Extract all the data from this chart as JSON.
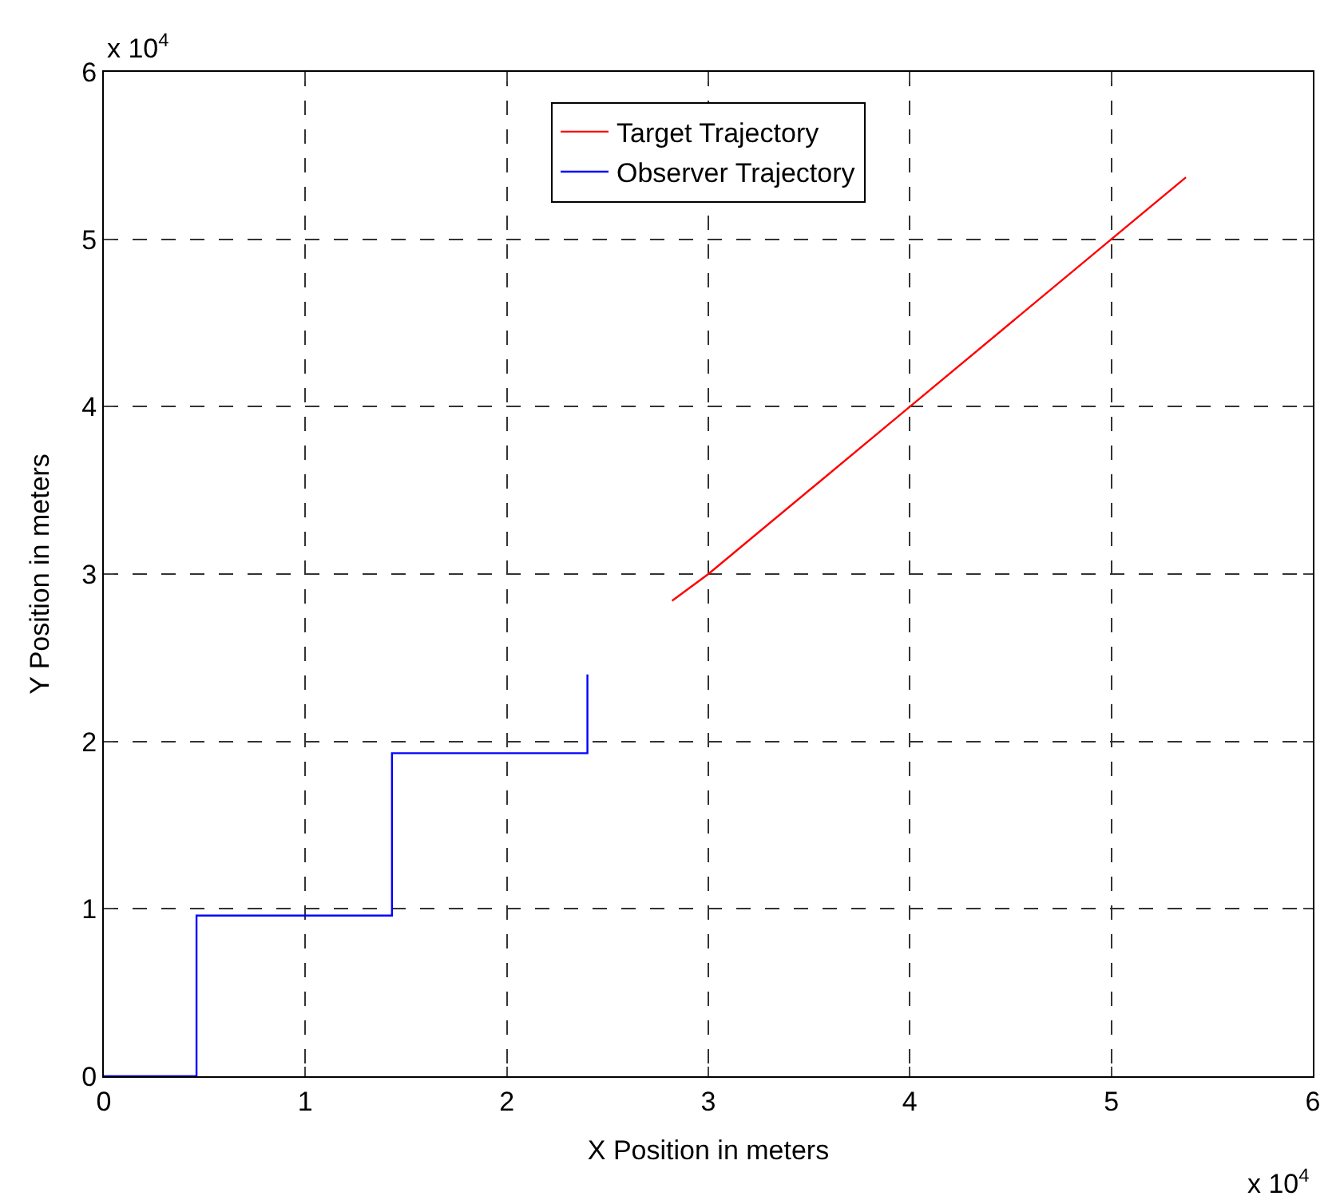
{
  "chart_data": {
    "type": "line",
    "xlabel": "X Position in meters",
    "ylabel": "Y Position in meters",
    "annotations": [
      "x 10$^{4}$",
      "x 10$^{4}$"
    ],
    "series": [
      {
        "name": "Target Trajectory",
        "color": "#ff0000",
        "x": [
          2.82,
          3.0,
          4.0,
          5.0,
          5.37
        ],
        "values": [
          2.84,
          3.0,
          4.0,
          5.0,
          5.37
        ]
      },
      {
        "name": "Observer Trajectory",
        "color": "#0000ff",
        "x": [
          0,
          0.46,
          0.46,
          1.43,
          1.43,
          2.4,
          2.4
        ],
        "values": [
          0,
          0,
          0.96,
          0.96,
          1.93,
          1.93,
          2.4
        ]
      }
    ],
    "xlim": [
      0,
      6
    ],
    "ylim": [
      0,
      6
    ],
    "xticks": [
      0,
      1,
      2,
      3,
      4,
      5,
      6
    ],
    "yticks": [
      0,
      1,
      2,
      3,
      4,
      5,
      6
    ],
    "grid": true,
    "legend": "top",
    "line_style": "solid",
    "marker": "none"
  }
}
